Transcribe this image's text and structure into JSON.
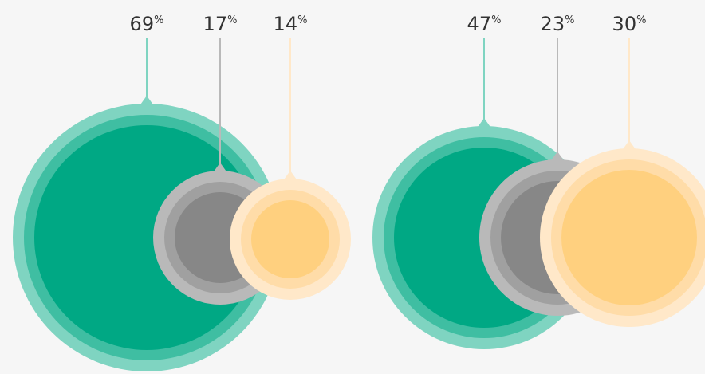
{
  "chart_data": [
    {
      "type": "bubble",
      "series": [
        {
          "name": "",
          "value": 69,
          "label": "69",
          "unit": "%",
          "color": "#00a884",
          "ring_colors": [
            "#7fd4c1",
            "#3fbea2"
          ]
        },
        {
          "name": "",
          "value": 17,
          "label": "17",
          "unit": "%",
          "color": "#878787",
          "ring_colors": [
            "#b9b9b9",
            "#a0a0a0"
          ]
        },
        {
          "name": "",
          "value": 14,
          "label": "14",
          "unit": "%",
          "color": "#ffd07f",
          "ring_colors": [
            "#ffe8c9",
            "#ffdca8"
          ]
        }
      ]
    },
    {
      "type": "bubble",
      "series": [
        {
          "name": "",
          "value": 47,
          "label": "47",
          "unit": "%",
          "color": "#00a884",
          "ring_colors": [
            "#7fd4c1",
            "#3fbea2"
          ]
        },
        {
          "name": "",
          "value": 23,
          "label": "23",
          "unit": "%",
          "color": "#878787",
          "ring_colors": [
            "#b9b9b9",
            "#a0a0a0"
          ]
        },
        {
          "name": "",
          "value": 30,
          "label": "30",
          "unit": "%",
          "color": "#ffd07f",
          "ring_colors": [
            "#ffe8c9",
            "#ffdca8"
          ]
        }
      ]
    }
  ]
}
